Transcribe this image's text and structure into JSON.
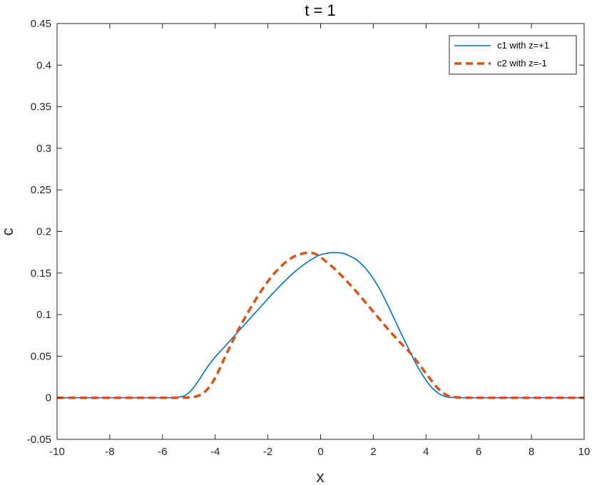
{
  "chart_data": {
    "type": "line",
    "title": "t = 1",
    "xlabel": "x",
    "ylabel": "c",
    "xlim": [
      -10,
      10
    ],
    "ylim": [
      -0.05,
      0.45
    ],
    "xticks": [
      -10,
      -8,
      -6,
      -4,
      -2,
      0,
      2,
      4,
      6,
      8,
      10
    ],
    "yticks": [
      -0.05,
      0,
      0.05,
      0.1,
      0.15,
      0.2,
      0.25,
      0.3,
      0.35,
      0.4,
      0.45
    ],
    "xtick_labels": [
      "-10",
      "-8",
      "-6",
      "-4",
      "-2",
      "0",
      "2",
      "4",
      "6",
      "8",
      "10"
    ],
    "ytick_labels": [
      "-0.05",
      "0",
      "0.05",
      "0.1",
      "0.15",
      "0.2",
      "0.25",
      "0.3",
      "0.35",
      "0.4",
      "0.45"
    ],
    "grid": false,
    "legend_position": "top-right",
    "series": [
      {
        "name": "c1 with z=+1",
        "color": "#0072BD",
        "style": "solid",
        "x": [
          -10,
          -6,
          -5.5,
          -5.2,
          -5.0,
          -4.8,
          -4.6,
          -4.4,
          -4.2,
          -4.0,
          -3.8,
          -3.6,
          -3.4,
          -3.2,
          -3.0,
          -2.6,
          -2.2,
          -1.8,
          -1.4,
          -1.0,
          -0.6,
          -0.2,
          0.0,
          0.2,
          0.4,
          0.6,
          0.8,
          1.0,
          1.4,
          1.8,
          2.2,
          2.6,
          3.0,
          3.2,
          3.4,
          3.6,
          3.8,
          4.0,
          4.2,
          4.4,
          4.6,
          4.8,
          5.0,
          5.2,
          5.5,
          6,
          10
        ],
        "y": [
          0,
          0,
          0.0005,
          0.002,
          0.006,
          0.013,
          0.022,
          0.032,
          0.041,
          0.049,
          0.056,
          0.063,
          0.07,
          0.077,
          0.084,
          0.098,
          0.112,
          0.126,
          0.139,
          0.151,
          0.161,
          0.169,
          0.172,
          0.1735,
          0.1745,
          0.1745,
          0.174,
          0.172,
          0.165,
          0.152,
          0.133,
          0.108,
          0.081,
          0.068,
          0.055,
          0.042,
          0.031,
          0.021,
          0.013,
          0.007,
          0.003,
          0.001,
          0.0004,
          0.0001,
          0,
          0,
          0
        ]
      },
      {
        "name": "c2 with z=-1",
        "color": "#D95319",
        "style": "dashed",
        "x": [
          -10,
          -6,
          -5.0,
          -4.8,
          -4.6,
          -4.4,
          -4.2,
          -4.0,
          -3.8,
          -3.6,
          -3.4,
          -3.2,
          -3.0,
          -2.6,
          -2.2,
          -1.8,
          -1.4,
          -1.0,
          -0.6,
          -0.4,
          -0.2,
          0.0,
          0.2,
          0.6,
          1.0,
          1.4,
          1.8,
          2.2,
          2.6,
          3.0,
          3.4,
          3.6,
          3.8,
          4.0,
          4.2,
          4.4,
          4.6,
          4.8,
          5.0,
          5.4,
          6,
          10
        ],
        "y": [
          0,
          0,
          0.0003,
          0.001,
          0.003,
          0.007,
          0.014,
          0.024,
          0.037,
          0.051,
          0.064,
          0.077,
          0.089,
          0.111,
          0.131,
          0.148,
          0.161,
          0.17,
          0.174,
          0.1745,
          0.173,
          0.169,
          0.164,
          0.153,
          0.14,
          0.126,
          0.111,
          0.096,
          0.081,
          0.067,
          0.054,
          0.046,
          0.038,
          0.029,
          0.021,
          0.013,
          0.007,
          0.003,
          0.001,
          0.0002,
          0,
          0
        ]
      }
    ]
  }
}
